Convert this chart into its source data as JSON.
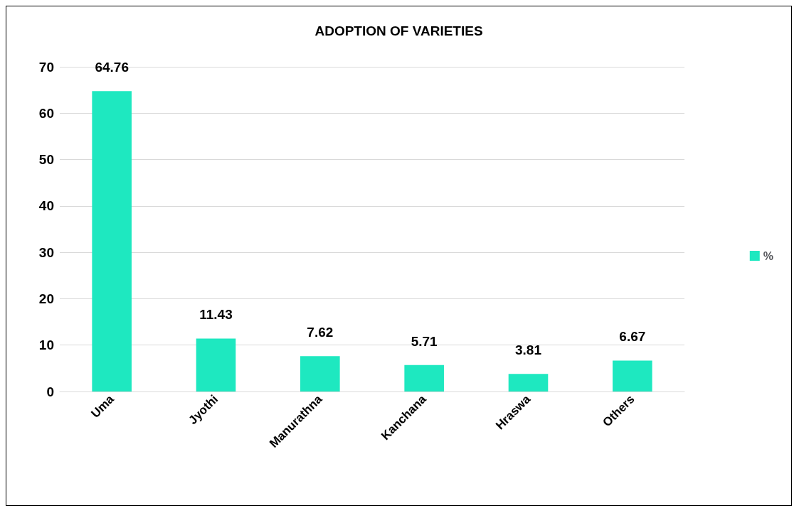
{
  "chart_data": {
    "type": "bar",
    "title": "ADOPTION OF VARIETIES",
    "categories": [
      "Uma",
      "Jyothi",
      "Manurathna",
      "Kanchana",
      "Hraswa",
      "Others"
    ],
    "series": [
      {
        "name": "%",
        "color": "#1ee8c0",
        "values": [
          64.76,
          11.43,
          7.62,
          5.71,
          3.81,
          6.67
        ]
      }
    ],
    "ylim": [
      0,
      70
    ],
    "yticks": [
      0,
      10,
      20,
      30,
      40,
      50,
      60,
      70
    ],
    "grid": "y",
    "legend": "right",
    "data_labels": true
  }
}
